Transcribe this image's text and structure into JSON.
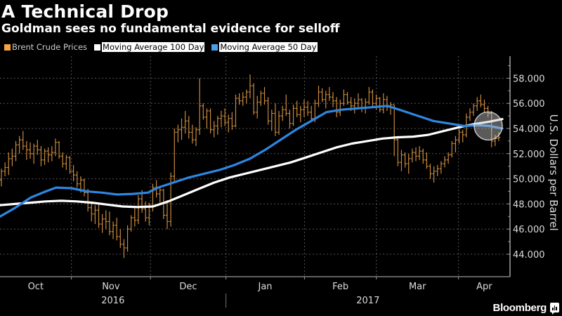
{
  "header": {
    "title": "A Technical Drop",
    "subtitle": "Goldman sees no fundamental evidence for selloff"
  },
  "legend": [
    {
      "label": "Brent Crude Prices",
      "color": "#f5a442",
      "boxed": false
    },
    {
      "label": "Moving Average 100 Day",
      "color": "#ffffff",
      "boxed": true
    },
    {
      "label": "Moving Average 50 Day",
      "color": "#4a9fe8",
      "boxed": true
    }
  ],
  "brand": "Bloomberg",
  "chart_data": {
    "type": "line",
    "title": "A Technical Drop",
    "subtitle": "Goldman sees no fundamental evidence for selloff",
    "xlabel": "",
    "ylabel": "U.S. Dollars per Barrel",
    "ylim": [
      42.5,
      59.5
    ],
    "yticks": [
      44,
      46,
      48,
      50,
      52,
      54,
      56,
      58
    ],
    "ytick_labels": [
      "44.000",
      "46.000",
      "48.000",
      "50.000",
      "52.000",
      "54.000",
      "56.000",
      "58.000"
    ],
    "grid": true,
    "legend_position": "top-left",
    "x_months": [
      {
        "label": "Oct",
        "start": 0.0,
        "end": 0.14
      },
      {
        "label": "Nov",
        "start": 0.14,
        "end": 0.295
      },
      {
        "label": "Dec",
        "start": 0.295,
        "end": 0.443
      },
      {
        "label": "Jan",
        "start": 0.443,
        "end": 0.597
      },
      {
        "label": "Feb",
        "start": 0.597,
        "end": 0.738
      },
      {
        "label": "Mar",
        "start": 0.738,
        "end": 0.899
      },
      {
        "label": "Apr",
        "start": 0.899,
        "end": 1.0
      }
    ],
    "x_years": [
      {
        "label": "2016",
        "start": 0.0,
        "end": 0.443
      },
      {
        "label": "2017",
        "start": 0.443,
        "end": 1.0
      }
    ],
    "series": [
      {
        "name": "Brent Crude Prices",
        "kind": "ohlc",
        "color": "#c98a3c",
        "values": [
          [
            49.9,
            50.8,
            49.4,
            50.6
          ],
          [
            50.6,
            51.3,
            50.2,
            50.9
          ],
          [
            50.9,
            52.1,
            50.3,
            51.6
          ],
          [
            51.6,
            52.4,
            51.0,
            51.8
          ],
          [
            51.8,
            53.0,
            51.4,
            52.7
          ],
          [
            52.7,
            53.4,
            52.0,
            53.1
          ],
          [
            53.1,
            53.8,
            52.3,
            52.6
          ],
          [
            52.6,
            53.0,
            51.5,
            52.3
          ],
          [
            52.3,
            52.9,
            51.6,
            52.0
          ],
          [
            52.0,
            52.8,
            51.2,
            52.6
          ],
          [
            52.6,
            53.1,
            51.9,
            52.3
          ],
          [
            52.3,
            52.6,
            51.0,
            51.5
          ],
          [
            51.5,
            52.4,
            51.1,
            52.2
          ],
          [
            52.2,
            52.5,
            51.3,
            51.9
          ],
          [
            51.9,
            52.6,
            51.4,
            52.1
          ],
          [
            52.1,
            53.2,
            51.8,
            52.9
          ],
          [
            52.9,
            53.0,
            51.6,
            51.8
          ],
          [
            51.8,
            52.1,
            50.9,
            51.2
          ],
          [
            51.2,
            51.9,
            50.7,
            51.7
          ],
          [
            51.7,
            51.8,
            50.4,
            50.6
          ],
          [
            50.6,
            51.1,
            49.8,
            50.3
          ],
          [
            50.3,
            50.6,
            49.3,
            49.6
          ],
          [
            49.6,
            50.2,
            48.9,
            49.9
          ],
          [
            49.9,
            50.0,
            48.6,
            48.9
          ],
          [
            48.9,
            49.2,
            47.4,
            47.7
          ],
          [
            47.7,
            48.1,
            46.6,
            47.2
          ],
          [
            47.2,
            47.9,
            46.4,
            47.5
          ],
          [
            47.5,
            48.0,
            46.1,
            46.4
          ],
          [
            46.4,
            47.2,
            45.7,
            46.8
          ],
          [
            46.8,
            47.5,
            46.0,
            46.6
          ],
          [
            46.6,
            47.4,
            45.5,
            45.8
          ],
          [
            45.8,
            46.6,
            45.2,
            46.3
          ],
          [
            46.3,
            46.9,
            45.1,
            45.4
          ],
          [
            45.4,
            46.0,
            44.5,
            44.8
          ],
          [
            44.8,
            45.2,
            43.7,
            44.5
          ],
          [
            44.5,
            46.3,
            44.2,
            46.0
          ],
          [
            46.0,
            47.1,
            45.8,
            46.9
          ],
          [
            46.9,
            47.8,
            46.2,
            46.7
          ],
          [
            46.7,
            48.7,
            46.4,
            48.4
          ],
          [
            48.4,
            49.1,
            47.3,
            47.6
          ],
          [
            47.6,
            48.2,
            46.6,
            46.9
          ],
          [
            46.9,
            48.1,
            46.3,
            47.8
          ],
          [
            47.8,
            49.6,
            47.4,
            49.3
          ],
          [
            49.3,
            49.9,
            48.5,
            48.8
          ],
          [
            48.8,
            49.3,
            48.1,
            49.1
          ],
          [
            49.1,
            49.2,
            46.8,
            47.1
          ],
          [
            47.1,
            48.3,
            46.0,
            46.6
          ],
          [
            46.6,
            50.5,
            46.2,
            50.2
          ],
          [
            50.2,
            54.0,
            49.8,
            53.7
          ],
          [
            53.7,
            54.3,
            52.9,
            53.9
          ],
          [
            53.9,
            54.8,
            53.1,
            54.1
          ],
          [
            54.1,
            55.4,
            53.6,
            54.6
          ],
          [
            54.6,
            55.0,
            53.2,
            53.7
          ],
          [
            53.7,
            54.3,
            52.8,
            53.1
          ],
          [
            53.1,
            54.1,
            52.6,
            53.9
          ],
          [
            53.9,
            58.0,
            53.5,
            55.8
          ],
          [
            55.8,
            56.0,
            54.7,
            54.9
          ],
          [
            54.9,
            55.6,
            54.0,
            55.4
          ],
          [
            55.4,
            55.6,
            53.6,
            53.9
          ],
          [
            53.9,
            54.6,
            53.3,
            54.2
          ],
          [
            54.2,
            55.0,
            53.5,
            54.8
          ],
          [
            54.8,
            55.4,
            54.1,
            55.0
          ],
          [
            55.0,
            55.6,
            54.2,
            54.5
          ],
          [
            54.5,
            55.1,
            53.7,
            54.8
          ],
          [
            54.8,
            55.3,
            53.9,
            54.2
          ],
          [
            54.2,
            56.7,
            54.1,
            56.4
          ],
          [
            56.4,
            56.8,
            55.9,
            56.2
          ],
          [
            56.2,
            56.9,
            55.8,
            56.5
          ],
          [
            56.5,
            57.1,
            56.0,
            56.9
          ],
          [
            56.9,
            58.3,
            56.4,
            57.4
          ],
          [
            57.4,
            57.6,
            55.1,
            55.3
          ],
          [
            55.3,
            56.6,
            54.8,
            56.1
          ],
          [
            56.1,
            57.0,
            55.8,
            56.8
          ],
          [
            56.8,
            57.3,
            55.9,
            56.2
          ],
          [
            56.2,
            56.5,
            54.3,
            54.6
          ],
          [
            54.6,
            55.5,
            53.8,
            55.2
          ],
          [
            55.2,
            56.0,
            53.4,
            53.7
          ],
          [
            53.7,
            55.4,
            53.5,
            55.0
          ],
          [
            55.0,
            55.8,
            54.6,
            55.5
          ],
          [
            55.5,
            56.7,
            55.0,
            55.2
          ],
          [
            55.2,
            55.5,
            54.0,
            54.4
          ],
          [
            54.4,
            55.9,
            54.2,
            55.6
          ],
          [
            55.6,
            56.2,
            54.9,
            55.1
          ],
          [
            55.1,
            55.8,
            54.5,
            55.5
          ],
          [
            55.5,
            56.3,
            54.9,
            55.7
          ],
          [
            55.7,
            56.2,
            55.0,
            55.3
          ],
          [
            55.3,
            55.8,
            54.6,
            54.8
          ],
          [
            54.8,
            56.3,
            54.5,
            56.0
          ],
          [
            56.0,
            57.4,
            55.7,
            56.9
          ],
          [
            56.9,
            57.2,
            56.1,
            56.3
          ],
          [
            56.3,
            57.0,
            55.6,
            56.7
          ],
          [
            56.7,
            57.3,
            56.2,
            56.5
          ],
          [
            56.5,
            56.9,
            55.7,
            56.2
          ],
          [
            56.2,
            56.5,
            54.9,
            55.3
          ],
          [
            55.3,
            56.3,
            55.0,
            56.0
          ],
          [
            56.0,
            57.1,
            55.8,
            56.7
          ],
          [
            56.7,
            56.9,
            55.9,
            56.1
          ],
          [
            56.1,
            56.5,
            55.4,
            55.8
          ],
          [
            55.8,
            56.4,
            55.2,
            56.0
          ],
          [
            56.0,
            56.8,
            55.6,
            56.3
          ],
          [
            56.3,
            56.4,
            55.3,
            55.6
          ],
          [
            55.6,
            56.4,
            55.2,
            56.1
          ],
          [
            56.1,
            57.3,
            55.9,
            56.9
          ],
          [
            56.9,
            57.1,
            55.7,
            56.0
          ],
          [
            56.0,
            56.7,
            55.5,
            56.4
          ],
          [
            56.4,
            56.5,
            55.3,
            55.5
          ],
          [
            55.5,
            56.8,
            55.2,
            56.3
          ],
          [
            56.3,
            56.6,
            55.4,
            55.7
          ],
          [
            55.7,
            56.1,
            55.1,
            55.9
          ],
          [
            55.9,
            55.9,
            51.8,
            53.1
          ],
          [
            53.1,
            53.4,
            51.0,
            51.3
          ],
          [
            51.3,
            52.3,
            50.6,
            51.9
          ],
          [
            51.9,
            52.1,
            50.9,
            51.2
          ],
          [
            51.2,
            52.0,
            50.4,
            51.6
          ],
          [
            51.6,
            52.4,
            51.3,
            52.1
          ],
          [
            52.1,
            52.5,
            51.4,
            51.8
          ],
          [
            51.8,
            52.6,
            51.5,
            52.2
          ],
          [
            52.2,
            52.4,
            51.2,
            51.5
          ],
          [
            51.5,
            52.1,
            50.8,
            51.0
          ],
          [
            51.0,
            51.2,
            50.0,
            50.4
          ],
          [
            50.4,
            51.0,
            49.7,
            50.6
          ],
          [
            50.6,
            51.1,
            50.2,
            50.8
          ],
          [
            50.8,
            51.4,
            50.4,
            51.2
          ],
          [
            51.2,
            51.8,
            50.9,
            51.5
          ],
          [
            51.5,
            52.1,
            51.2,
            51.9
          ],
          [
            51.9,
            53.0,
            51.7,
            52.8
          ],
          [
            52.8,
            53.4,
            52.1,
            53.1
          ],
          [
            53.1,
            54.0,
            52.8,
            53.7
          ],
          [
            53.7,
            53.9,
            52.9,
            53.5
          ],
          [
            53.5,
            55.2,
            53.3,
            54.9
          ],
          [
            54.9,
            55.6,
            54.6,
            55.3
          ],
          [
            55.3,
            56.0,
            55.0,
            55.8
          ],
          [
            55.8,
            56.5,
            55.4,
            56.2
          ],
          [
            56.2,
            56.7,
            55.7,
            55.9
          ],
          [
            55.9,
            56.3,
            55.3,
            55.6
          ],
          [
            55.6,
            55.8,
            54.9,
            55.2
          ],
          [
            55.2,
            55.4,
            52.5,
            53.0
          ],
          [
            53.0,
            53.5,
            52.6,
            53.2
          ],
          [
            53.2,
            53.7,
            53.0,
            53.3
          ]
        ]
      },
      {
        "name": "Moving Average 100 Day",
        "kind": "line",
        "color": "#ffffff",
        "points": [
          [
            0.0,
            47.9
          ],
          [
            0.03,
            48.0
          ],
          [
            0.06,
            48.1
          ],
          [
            0.09,
            48.2
          ],
          [
            0.12,
            48.25
          ],
          [
            0.15,
            48.2
          ],
          [
            0.18,
            48.1
          ],
          [
            0.21,
            47.95
          ],
          [
            0.24,
            47.8
          ],
          [
            0.27,
            47.75
          ],
          [
            0.3,
            47.8
          ],
          [
            0.33,
            48.2
          ],
          [
            0.36,
            48.7
          ],
          [
            0.39,
            49.2
          ],
          [
            0.42,
            49.7
          ],
          [
            0.45,
            50.1
          ],
          [
            0.48,
            50.4
          ],
          [
            0.51,
            50.7
          ],
          [
            0.54,
            51.0
          ],
          [
            0.57,
            51.3
          ],
          [
            0.6,
            51.7
          ],
          [
            0.63,
            52.1
          ],
          [
            0.66,
            52.5
          ],
          [
            0.69,
            52.8
          ],
          [
            0.72,
            53.0
          ],
          [
            0.75,
            53.2
          ],
          [
            0.78,
            53.3
          ],
          [
            0.81,
            53.35
          ],
          [
            0.84,
            53.5
          ],
          [
            0.87,
            53.8
          ],
          [
            0.9,
            54.1
          ],
          [
            0.93,
            54.35
          ],
          [
            0.96,
            54.55
          ],
          [
            0.985,
            54.75
          ]
        ]
      },
      {
        "name": "Moving Average 50 Day",
        "kind": "line",
        "color": "#2f86e0",
        "points": [
          [
            0.0,
            47.0
          ],
          [
            0.03,
            47.7
          ],
          [
            0.06,
            48.5
          ],
          [
            0.09,
            49.0
          ],
          [
            0.11,
            49.3
          ],
          [
            0.14,
            49.25
          ],
          [
            0.17,
            49.0
          ],
          [
            0.2,
            48.9
          ],
          [
            0.23,
            48.75
          ],
          [
            0.26,
            48.8
          ],
          [
            0.29,
            48.9
          ],
          [
            0.31,
            49.3
          ],
          [
            0.34,
            49.7
          ],
          [
            0.37,
            50.1
          ],
          [
            0.4,
            50.4
          ],
          [
            0.43,
            50.7
          ],
          [
            0.46,
            51.1
          ],
          [
            0.49,
            51.6
          ],
          [
            0.52,
            52.3
          ],
          [
            0.55,
            53.1
          ],
          [
            0.58,
            53.9
          ],
          [
            0.61,
            54.6
          ],
          [
            0.64,
            55.3
          ],
          [
            0.67,
            55.5
          ],
          [
            0.7,
            55.6
          ],
          [
            0.73,
            55.7
          ],
          [
            0.76,
            55.8
          ],
          [
            0.79,
            55.4
          ],
          [
            0.82,
            55.0
          ],
          [
            0.85,
            54.6
          ],
          [
            0.88,
            54.4
          ],
          [
            0.91,
            54.2
          ],
          [
            0.94,
            54.25
          ],
          [
            0.96,
            54.2
          ],
          [
            0.985,
            54.0
          ]
        ]
      }
    ],
    "annotations": [
      {
        "type": "circle-highlight",
        "at_x": 0.975,
        "at_y": 54.2,
        "note": "crossover region"
      }
    ]
  }
}
